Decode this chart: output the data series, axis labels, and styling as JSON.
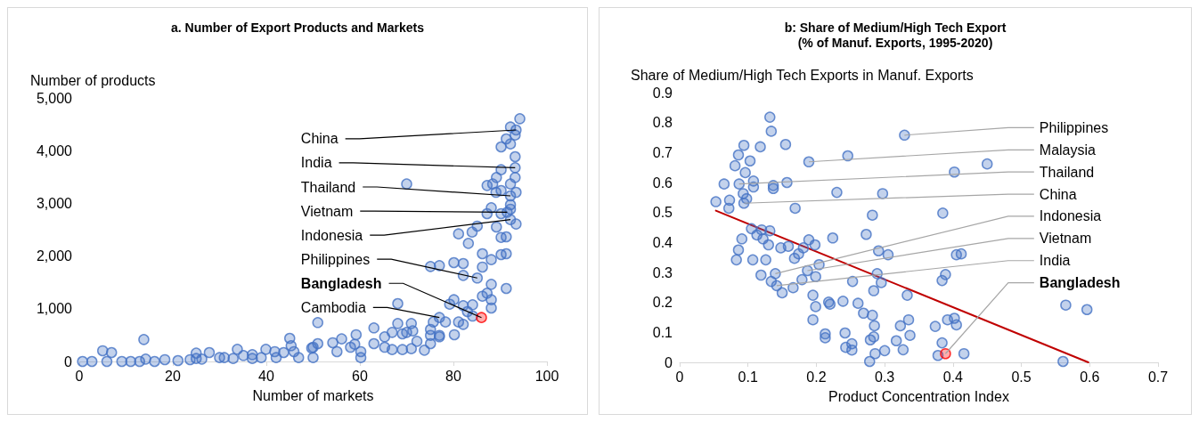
{
  "chart_data": [
    {
      "type": "scatter",
      "title": "a. Number of Export Products and Markets",
      "xlabel": "Number of markets",
      "ylabel": "Number of products",
      "xlim": [
        0,
        100
      ],
      "ylim": [
        0,
        5000
      ],
      "xticks": [
        0,
        20,
        40,
        60,
        80,
        100
      ],
      "yticks": [
        0,
        {
          "value": 1000,
          "label": "1,000"
        },
        {
          "value": 2000,
          "label": "2,000"
        },
        {
          "value": 3000,
          "label": "3,000"
        },
        {
          "value": 4000,
          "label": "4,000"
        },
        {
          "value": 5000,
          "label": "5,000"
        }
      ],
      "grid": false,
      "marker": "circle",
      "series": [
        {
          "color": "#4472c4",
          "x": [
            94.2,
            92.2,
            93.4,
            93.2,
            91.3,
            92.2,
            90.2,
            93.2,
            93.2,
            90.2,
            93.2,
            89.2,
            87.2,
            88.4,
            92.2,
            70.0,
            90.2,
            89.1,
            93.4,
            92.2,
            92.2,
            92.2,
            88.1,
            87.2,
            90.2,
            91.5,
            93.4,
            92.2,
            85.1,
            84.0,
            89.2,
            81.1,
            90.2,
            91.3,
            83.2,
            86.2,
            90.2,
            91.3,
            88.1,
            86.2,
            75.1,
            77.0,
            80.1,
            82.1,
            82.1,
            85.1,
            88.1,
            91.3,
            86.2,
            87.2,
            88.1,
            88.1,
            80.1,
            79.2,
            84.1,
            82.1,
            83.0,
            84.1,
            68.1,
            77.0,
            78.3,
            75.7,
            81.1,
            82.1,
            51.0,
            63.0,
            68.1,
            71.0,
            75.1,
            77.0,
            80.2,
            70.0,
            71.3,
            69.1,
            65.3,
            66.9,
            59.2,
            56.1,
            54.2,
            45.0,
            45.3,
            46.9,
            50.0,
            51.0,
            50.0,
            55.1,
            60.2,
            58.9,
            60.2,
            58.0,
            63.0,
            65.3,
            66.9,
            69.1,
            71.0,
            72.2,
            75.1,
            75.1,
            77.0,
            73.8,
            0.7,
            2.7,
            5.0,
            6.9,
            5.9,
            9.1,
            11.0,
            12.9,
            13.8,
            14.2,
            16.1,
            18.3,
            21.1,
            23.7,
            25.0,
            25.0,
            26.2,
            27.8,
            30.0,
            31.0,
            32.9,
            33.8,
            35.1,
            37.0,
            37.0,
            38.9,
            39.9,
            41.8,
            42.1,
            43.7,
            45.9,
            49.7
          ],
          "values": [
            4606,
            4448,
            4392,
            4296,
            4223,
            4127,
            4071,
            3885,
            3677,
            3637,
            3491,
            3491,
            3339,
            3367,
            3367,
            3367,
            3243,
            3209,
            3209,
            3142,
            2973,
            2889,
            2917,
            2804,
            2804,
            2832,
            2607,
            2691,
            2568,
            2455,
            2551,
            2421,
            2353,
            2365,
            2241,
            2044,
            2027,
            2044,
            1931,
            1791,
            1802,
            1819,
            1875,
            1858,
            1633,
            1583,
            1464,
            1385,
            1238,
            1295,
            1171,
            1014,
            1171,
            1086,
            1076,
            1059,
            946,
            861,
            1098,
            833,
            749,
            749,
            749,
            704,
            738,
            637,
            721,
            721,
            608,
            468,
            507,
            552,
            580,
            524,
            468,
            552,
            507,
            428,
            355,
            439,
            299,
            73,
            270,
            338,
            73,
            186,
            186,
            326,
            73,
            270,
            338,
            270,
            225,
            225,
            242,
            383,
            338,
            495,
            495,
            214,
            0,
            0,
            203,
            169,
            0,
            0,
            0,
            0,
            417,
            45,
            0,
            34,
            17,
            34,
            158,
            56,
            45,
            169,
            73,
            73,
            56,
            231,
            113,
            130,
            56,
            73,
            231,
            186,
            73,
            169,
            186,
            254
          ]
        },
        {
          "color": "#ff0000",
          "x": [
            86.0
          ],
          "values": [
            833
          ]
        }
      ],
      "annotations": [
        {
          "text": "China",
          "x": 93.4,
          "y": 4392
        },
        {
          "text": "India",
          "x": 93.2,
          "y": 3677
        },
        {
          "text": "Thailand",
          "x": 92.2,
          "y": 3142
        },
        {
          "text": "Vietnam",
          "x": 91.5,
          "y": 2832
        },
        {
          "text": "Indonesia",
          "x": 92.2,
          "y": 2691
        },
        {
          "text": "Philippines",
          "x": 85.1,
          "y": 1583
        },
        {
          "text": "Bangladesh",
          "x": 86.0,
          "y": 833
        },
        {
          "text": "Cambodia",
          "x": 77.0,
          "y": 833
        }
      ]
    },
    {
      "type": "scatter",
      "title": "b: Share of Medium/High Tech Export\n(% of Manuf. Exports, 1995-2020)",
      "xlabel": "Product Concentration Index",
      "ylabel": "Share of Medium/High Tech Exports in Manuf. Exports",
      "xlim": [
        0,
        0.7
      ],
      "ylim": [
        0,
        0.9
      ],
      "xticks": [
        0,
        0.1,
        0.2,
        0.3,
        0.4,
        0.5,
        0.6,
        0.7
      ],
      "yticks": [
        0,
        0.1,
        0.2,
        0.3,
        0.4,
        0.5,
        0.6,
        0.7,
        0.8,
        0.9
      ],
      "grid": false,
      "marker": "circle",
      "series": [
        {
          "color": "#4472c4",
          "x": [
            0.053,
            0.065,
            0.073,
            0.072,
            0.081,
            0.086,
            0.094,
            0.096,
            0.103,
            0.087,
            0.093,
            0.098,
            0.094,
            0.108,
            0.108,
            0.118,
            0.132,
            0.134,
            0.155,
            0.137,
            0.137,
            0.157,
            0.169,
            0.091,
            0.086,
            0.083,
            0.107,
            0.105,
            0.113,
            0.12,
            0.122,
            0.132,
            0.13,
            0.126,
            0.119,
            0.14,
            0.134,
            0.142,
            0.15,
            0.148,
            0.159,
            0.166,
            0.168,
            0.174,
            0.181,
            0.189,
            0.198,
            0.204,
            0.187,
            0.179,
            0.199,
            0.224,
            0.23,
            0.189,
            0.195,
            0.199,
            0.195,
            0.213,
            0.213,
            0.218,
            0.22,
            0.239,
            0.242,
            0.243,
            0.252,
            0.252,
            0.246,
            0.329,
            0.45,
            0.402,
            0.297,
            0.282,
            0.385,
            0.273,
            0.291,
            0.305,
            0.405,
            0.412,
            0.289,
            0.295,
            0.253,
            0.389,
            0.384,
            0.284,
            0.333,
            0.261,
            0.269,
            0.282,
            0.285,
            0.279,
            0.284,
            0.278,
            0.286,
            0.3,
            0.317,
            0.327,
            0.323,
            0.335,
            0.337,
            0.374,
            0.384,
            0.378,
            0.392,
            0.402,
            0.405,
            0.416,
            0.565,
            0.596,
            0.561
          ],
          "values": [
            0.536,
            0.595,
            0.541,
            0.514,
            0.656,
            0.692,
            0.724,
            0.633,
            0.672,
            0.595,
            0.563,
            0.546,
            0.531,
            0.605,
            0.585,
            0.719,
            0.818,
            0.771,
            0.727,
            0.59,
            0.58,
            0.6,
            0.514,
            0.412,
            0.375,
            0.342,
            0.342,
            0.446,
            0.425,
            0.442,
            0.412,
            0.439,
            0.392,
            0.342,
            0.291,
            0.296,
            0.27,
            0.256,
            0.232,
            0.382,
            0.387,
            0.249,
            0.347,
            0.362,
            0.382,
            0.409,
            0.392,
            0.326,
            0.306,
            0.276,
            0.286,
            0.415,
            0.567,
            0.669,
            0.224,
            0.186,
            0.142,
            0.095,
            0.082,
            0.201,
            0.194,
            0.204,
            0.098,
            0.05,
            0.062,
            0.041,
            0.689,
            0.758,
            0.662,
            0.635,
            0.563,
            0.491,
            0.498,
            0.427,
            0.372,
            0.359,
            0.359,
            0.362,
            0.296,
            0.266,
            0.27,
            0.293,
            0.273,
            0.239,
            0.224,
            0.197,
            0.164,
            0.157,
            0.122,
            0.075,
            0.085,
            0.003,
            0.029,
            0.039,
            0.072,
            0.042,
            0.122,
            0.142,
            0.09,
            0.12,
            0.065,
            0.023,
            0.142,
            0.147,
            0.125,
            0.029,
            0.191,
            0.176,
            0.003
          ]
        },
        {
          "color": "#ff0000",
          "x": [
            0.389
          ],
          "values": [
            0.029
          ]
        },
        {
          "type": "line",
          "marker": "none",
          "color": "#c00000",
          "x": [
            0.053,
            0.598
          ],
          "values": [
            0.506,
            0
          ]
        }
      ],
      "annotations": [
        {
          "text": "Philippines",
          "x": 0.329,
          "y": 0.758
        },
        {
          "text": "Malaysia",
          "x": 0.189,
          "y": 0.669
        },
        {
          "text": "Thailand",
          "x": 0.087,
          "y": 0.595
        },
        {
          "text": "China",
          "x": 0.094,
          "y": 0.531
        },
        {
          "text": "Indonesia",
          "x": 0.14,
          "y": 0.296
        },
        {
          "text": "Vietnam",
          "x": 0.187,
          "y": 0.306
        },
        {
          "text": "India",
          "x": 0.142,
          "y": 0.256
        },
        {
          "text": "Bangladesh",
          "x": 0.389,
          "y": 0.029
        }
      ]
    }
  ]
}
